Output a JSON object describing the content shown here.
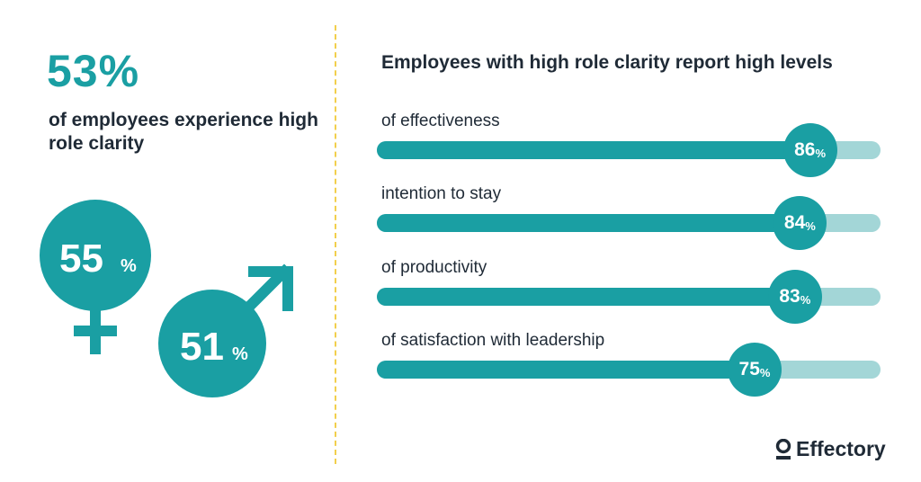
{
  "headline": {
    "percent": "53%",
    "text": "of employees experience high role clarity"
  },
  "gender": {
    "female": {
      "value": "55",
      "unit": "%",
      "icon": "female-symbol-icon"
    },
    "male": {
      "value": "51",
      "unit": "%",
      "icon": "male-symbol-icon"
    }
  },
  "colors": {
    "accent": "#1a9fa3",
    "track": "#a3d6d7",
    "divider": "#f2cf4d",
    "text": "#1f2a36"
  },
  "chart_data": {
    "type": "bar",
    "orientation": "horizontal",
    "title": "Employees with high role clarity report high levels",
    "categories": [
      "of effectiveness",
      "intention to stay",
      "of productivity",
      "of satisfaction with leadership"
    ],
    "values": [
      86,
      84,
      83,
      75
    ],
    "unit": "%",
    "xlim": [
      0,
      100
    ]
  },
  "brand": {
    "logo_text": "Effectory",
    "icon": "effectory-logo-icon"
  }
}
